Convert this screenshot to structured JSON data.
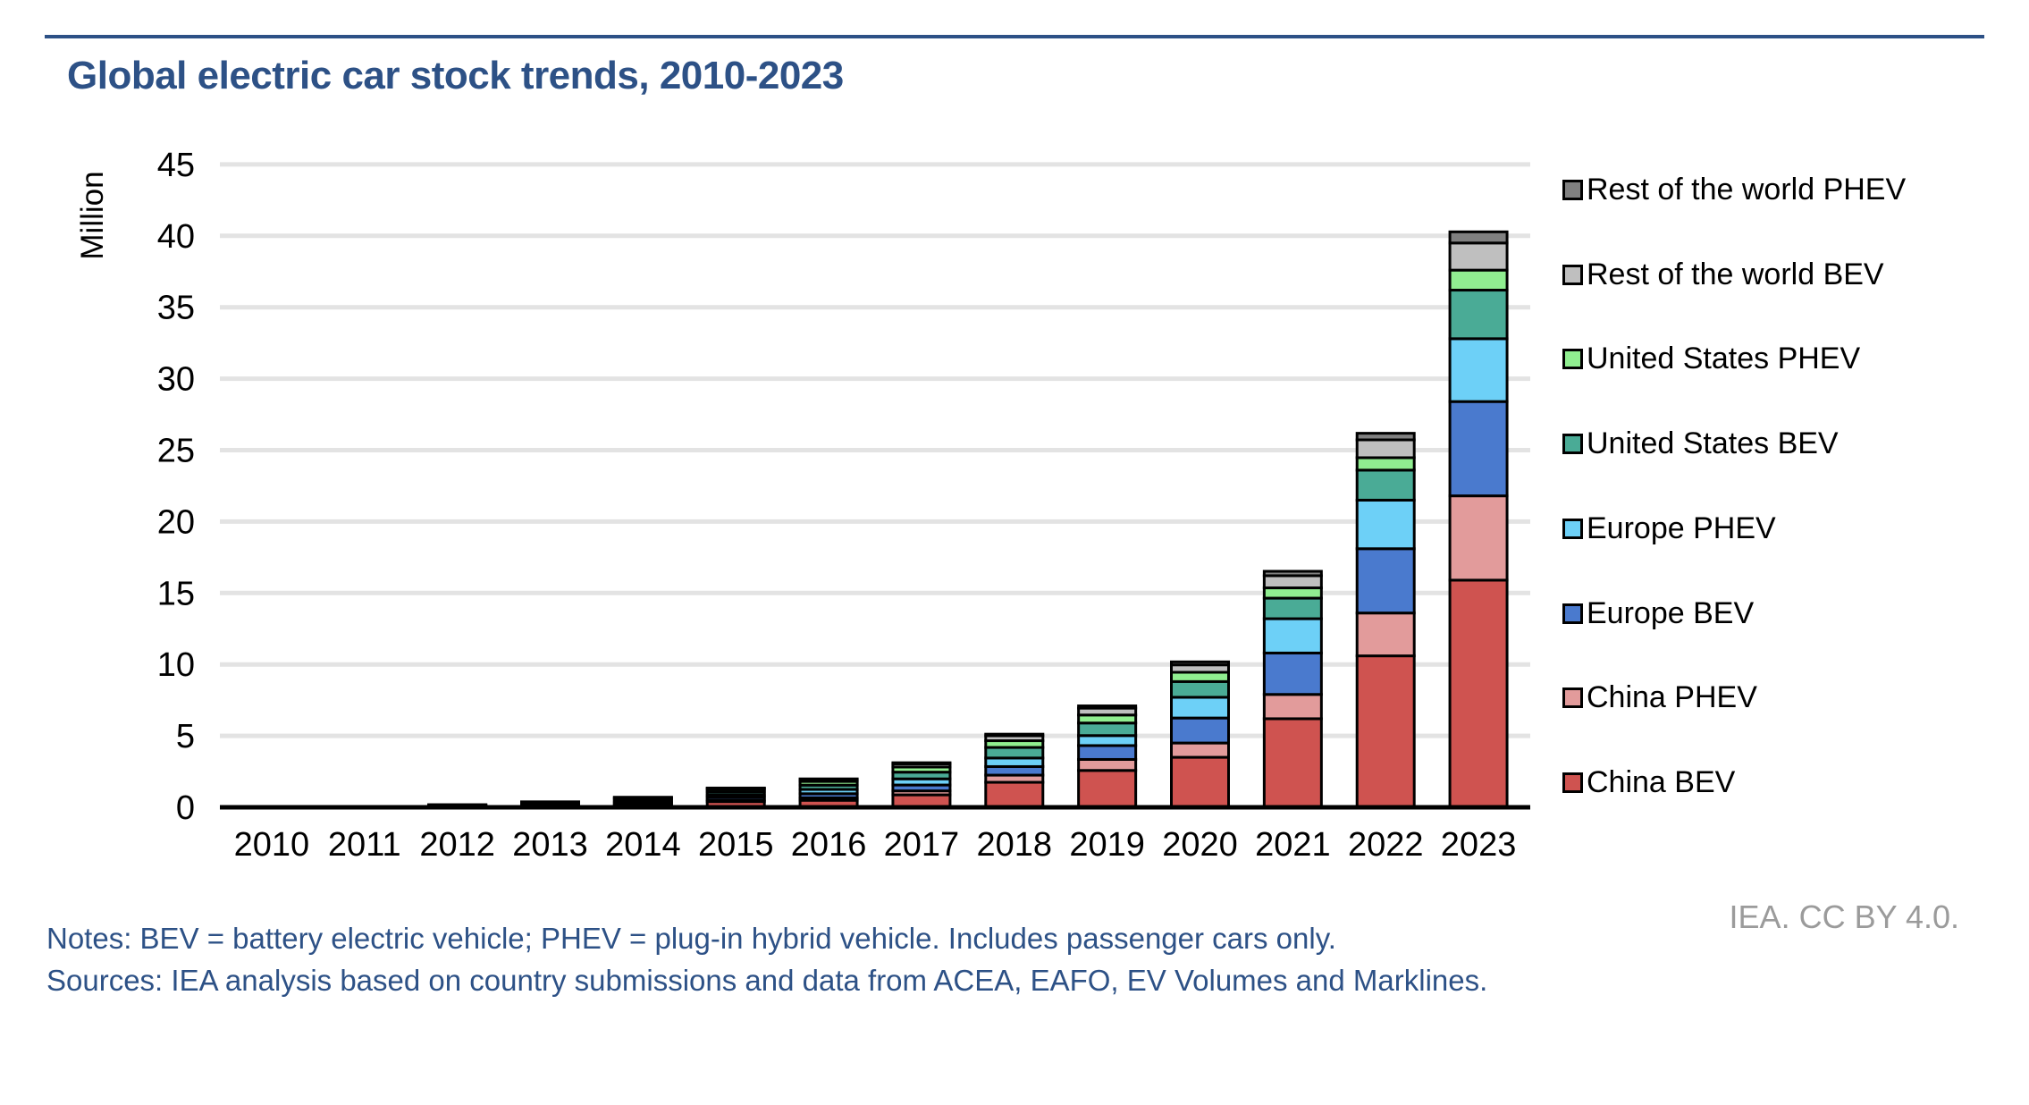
{
  "page": {
    "title": "Global electric car stock trends, 2010-2023",
    "attribution": "IEA. CC BY 4.0.",
    "notes": "Notes: BEV = battery electric vehicle; PHEV = plug-in hybrid vehicle. Includes passenger cars only.",
    "sources": "Sources: IEA analysis based on country submissions and data from ACEA, EAFO, EV Volumes and Marklines."
  },
  "chart_data": {
    "type": "bar",
    "stacked": true,
    "title": "Global electric car stock trends, 2010-2023",
    "xlabel": "",
    "ylabel": "Million",
    "ylim": [
      0,
      45
    ],
    "ytick_step": 5,
    "yticks": [
      0,
      5,
      10,
      15,
      20,
      25,
      30,
      35,
      40,
      45
    ],
    "grid": true,
    "gridline_color": "#e3e3e3",
    "bar_outline_color": "#000000",
    "legend_position": "right",
    "categories": [
      "2010",
      "2011",
      "2012",
      "2013",
      "2014",
      "2015",
      "2016",
      "2017",
      "2018",
      "2019",
      "2020",
      "2021",
      "2022",
      "2023"
    ],
    "series": [
      {
        "name": "China BEV",
        "color": "#cf5350",
        "values": [
          0.005,
          0.01,
          0.02,
          0.045,
          0.12,
          0.4,
          0.49,
          0.87,
          1.75,
          2.58,
          3.5,
          6.2,
          10.6,
          15.9
        ]
      },
      {
        "name": "China PHEV",
        "color": "#e29b9b",
        "values": [
          0.001,
          0.002,
          0.006,
          0.015,
          0.05,
          0.12,
          0.17,
          0.28,
          0.5,
          0.77,
          1.0,
          1.7,
          3.0,
          5.9
        ]
      },
      {
        "name": "Europe BEV",
        "color": "#4a7ace",
        "values": [
          0.004,
          0.015,
          0.035,
          0.075,
          0.13,
          0.2,
          0.29,
          0.41,
          0.6,
          0.97,
          1.75,
          2.9,
          4.5,
          6.6
        ]
      },
      {
        "name": "Europe PHEV",
        "color": "#6dd0f7",
        "values": [
          0.001,
          0.003,
          0.01,
          0.03,
          0.07,
          0.15,
          0.3,
          0.43,
          0.6,
          0.7,
          1.45,
          2.4,
          3.4,
          4.4
        ]
      },
      {
        "name": "United States BEV",
        "color": "#4aab96",
        "values": [
          0.004,
          0.01,
          0.03,
          0.075,
          0.13,
          0.21,
          0.3,
          0.47,
          0.74,
          0.88,
          1.1,
          1.44,
          2.1,
          3.4
        ]
      },
      {
        "name": "United States PHEV",
        "color": "#90ee90",
        "values": [
          0.002,
          0.008,
          0.04,
          0.095,
          0.13,
          0.19,
          0.26,
          0.36,
          0.47,
          0.56,
          0.65,
          0.72,
          0.87,
          1.4
        ]
      },
      {
        "name": "Rest of the world BEV",
        "color": "#bfbfbf",
        "values": [
          0.003,
          0.01,
          0.035,
          0.04,
          0.055,
          0.06,
          0.13,
          0.22,
          0.35,
          0.48,
          0.52,
          0.85,
          1.25,
          1.9
        ]
      },
      {
        "name": "Rest of the world PHEV",
        "color": "#808080",
        "values": [
          0.001,
          0.002,
          0.005,
          0.01,
          0.02,
          0.02,
          0.05,
          0.08,
          0.11,
          0.16,
          0.21,
          0.31,
          0.46,
          0.78
        ]
      }
    ],
    "legend_order_top_to_bottom": [
      "Rest of the world PHEV",
      "Rest of the world BEV",
      "United States PHEV",
      "United States BEV",
      "Europe PHEV",
      "Europe BEV",
      "China PHEV",
      "China BEV"
    ]
  }
}
